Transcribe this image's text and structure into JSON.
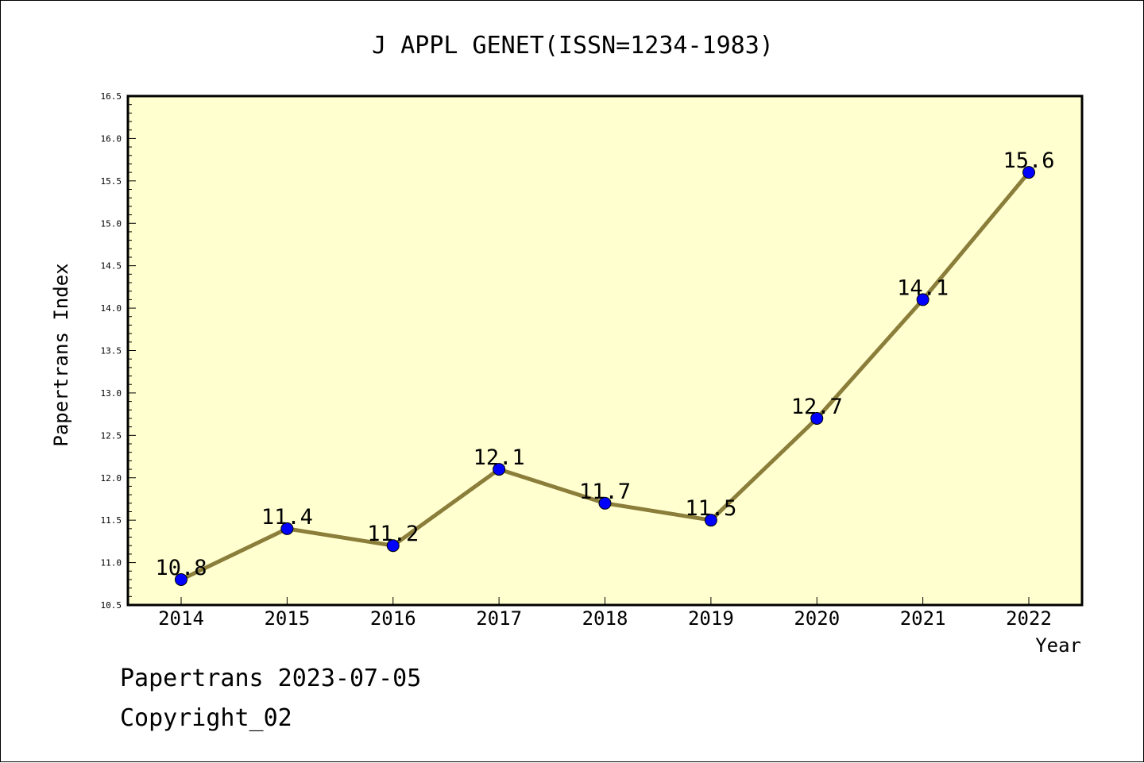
{
  "chart_data": {
    "type": "line",
    "title": "J APPL GENET(ISSN=1234-1983)",
    "xlabel": "Year",
    "ylabel": "Papertrans Index",
    "categories": [
      "2014",
      "2015",
      "2016",
      "2017",
      "2018",
      "2019",
      "2020",
      "2021",
      "2022"
    ],
    "series": [
      {
        "values": [
          10.8,
          11.4,
          11.2,
          12.1,
          11.7,
          11.5,
          12.7,
          14.1,
          15.6
        ],
        "labels": [
          "10.8",
          "11.4",
          "11.2",
          "12.1",
          "11.7",
          "11.5",
          "12.7",
          "14.1",
          "15.6"
        ]
      }
    ],
    "ylim": [
      10.5,
      16.5
    ],
    "yticks": [
      "10.5",
      "11.0",
      "11.5",
      "12.0",
      "12.5",
      "13.0",
      "13.5",
      "14.0",
      "14.5",
      "15.0",
      "15.5",
      "16.0",
      "16.5"
    ],
    "grid": false,
    "legend": "none",
    "colors": {
      "plot_background": "#ffffd0",
      "line": "#8b7d3a",
      "marker": "#0000ff",
      "axes": "#000000"
    }
  },
  "footer": {
    "date_text": "Papertrans 2023-07-05",
    "copyright_text": "Copyright_02"
  }
}
